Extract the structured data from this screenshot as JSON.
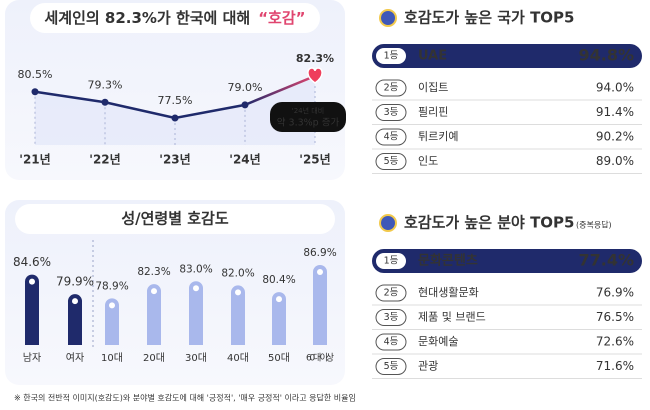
{
  "chart_data": [
    {
      "type": "line",
      "title": "세계인의 82.3%가 한국에 대해",
      "title_highlight": "“호감”",
      "categories": [
        "'21년",
        "'22년",
        "'23년",
        "'24년",
        "'25년"
      ],
      "values": [
        80.5,
        79.3,
        77.5,
        79.0,
        82.3
      ],
      "value_labels": [
        "80.5%",
        "79.3%",
        "77.5%",
        "79.0%",
        "82.3%"
      ],
      "annotation": [
        "'24년 대비",
        "약 3.3%p 증가"
      ],
      "color": "#1f2a6b"
    },
    {
      "type": "bar",
      "title": "성/연령별 호감도",
      "categories": [
        "남자",
        "여자",
        "10대",
        "20대",
        "30대",
        "40대",
        "50대",
        "60대 이상"
      ],
      "values": [
        84.6,
        79.9,
        78.9,
        82.3,
        83.0,
        82.0,
        80.4,
        86.9
      ],
      "value_labels": [
        "84.6%",
        "79.9%",
        "78.9%",
        "82.3%",
        "83.0%",
        "82.0%",
        "80.4%",
        "86.9%"
      ],
      "colors": [
        "#1f2a6b",
        "#1f2a6b",
        "#a9b8ec",
        "#a9b8ec",
        "#a9b8ec",
        "#a9b8ec",
        "#a9b8ec",
        "#a9b8ec"
      ]
    }
  ],
  "rankings": [
    {
      "title": "호감도가 높은 국가 TOP5",
      "items": [
        {
          "rank": "1등",
          "name": "UAE",
          "value": "94.8%"
        },
        {
          "rank": "2등",
          "name": "이집트",
          "value": "94.0%"
        },
        {
          "rank": "3등",
          "name": "필리핀",
          "value": "91.4%"
        },
        {
          "rank": "4등",
          "name": "튀르키예",
          "value": "90.2%"
        },
        {
          "rank": "5등",
          "name": "인도",
          "value": "89.0%"
        }
      ]
    },
    {
      "title": "호감도가 높은 분야 TOP5",
      "note": "(중복응답)",
      "items": [
        {
          "rank": "1등",
          "name": "문화콘텐츠",
          "value": "77.4%"
        },
        {
          "rank": "2등",
          "name": "현대생활문화",
          "value": "76.9%"
        },
        {
          "rank": "3등",
          "name": "제품 및 브랜드",
          "value": "76.5%"
        },
        {
          "rank": "4등",
          "name": "문화예술",
          "value": "72.6%"
        },
        {
          "rank": "5등",
          "name": "관광",
          "value": "71.6%"
        }
      ]
    }
  ],
  "footnote": "※ 한국의 전반적 이미지(호감도)와 분야별 호감도에 대해 '긍정적', '매우 긍정적' 이라고 응답한 비율임"
}
